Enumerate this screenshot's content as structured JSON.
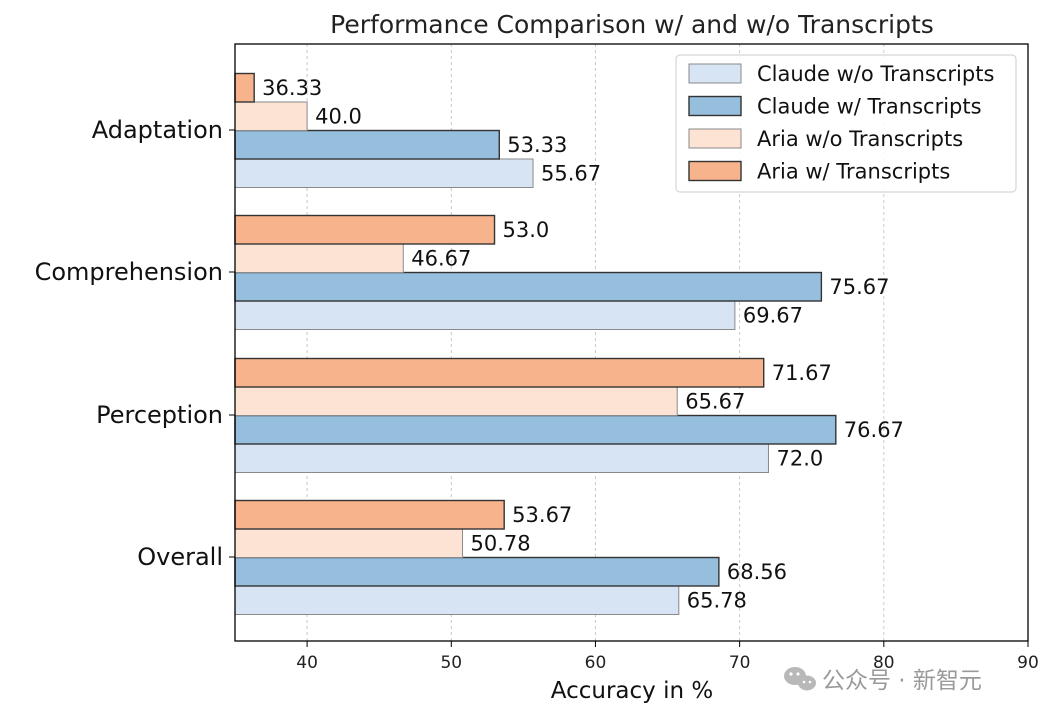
{
  "chart_data": {
    "type": "bar",
    "orientation": "horizontal",
    "title": "Performance Comparison w/ and w/o Transcripts",
    "xlabel": "Accuracy in %",
    "ylabel": "",
    "xlim": [
      35,
      90
    ],
    "xticks": [
      40,
      50,
      60,
      70,
      80,
      90
    ],
    "grid": "x-dotted",
    "legend_position": "top-right",
    "categories": [
      "Adaptation",
      "Comprehension",
      "Perception",
      "Overall"
    ],
    "series": [
      {
        "name": "Claude w/o Transcripts",
        "color": "#d6e4f3",
        "values": [
          55.67,
          69.67,
          72.0,
          65.78
        ],
        "labels": [
          "55.67",
          "69.67",
          "72.0",
          "65.78"
        ]
      },
      {
        "name": "Claude w/ Transcripts",
        "color": "#95bfdd",
        "values": [
          53.33,
          75.67,
          76.67,
          68.56
        ],
        "labels": [
          "53.33",
          "75.67",
          "76.67",
          "68.56"
        ]
      },
      {
        "name": "Aria w/o Transcripts",
        "color": "#fde3d3",
        "values": [
          40.0,
          46.67,
          65.67,
          50.78
        ],
        "labels": [
          "40.0",
          "46.67",
          "65.67",
          "50.78"
        ]
      },
      {
        "name": "Aria w/ Transcripts",
        "color": "#f7b48c",
        "values": [
          36.33,
          53.0,
          71.67,
          53.67
        ],
        "labels": [
          "36.33",
          "53.0",
          "71.67",
          "53.67"
        ]
      }
    ]
  },
  "watermark": {
    "text": "公众号 · 新智元",
    "icon": "wechat-icon"
  }
}
